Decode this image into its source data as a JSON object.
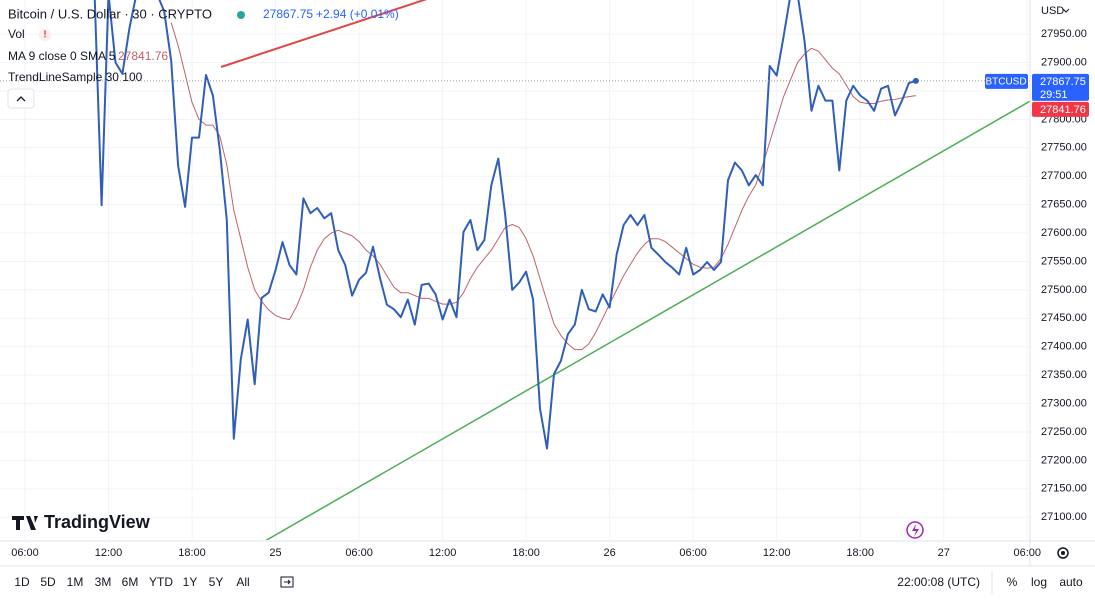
{
  "chart_data": {
    "type": "line",
    "categories": [
      "06:00",
      null,
      null,
      null,
      null,
      null,
      null,
      null,
      null,
      null,
      null,
      null,
      "12:00",
      null,
      null,
      null,
      null,
      null,
      null,
      null,
      null,
      null,
      null,
      null,
      "18:00",
      null,
      null,
      null,
      null,
      null,
      null,
      null,
      null,
      null,
      null,
      null,
      "25",
      null,
      null,
      null,
      null,
      null,
      null,
      null,
      null,
      null,
      null,
      null,
      "06:00",
      null,
      null,
      null,
      null,
      null,
      null,
      null,
      null,
      null,
      null,
      null,
      "12:00",
      null,
      null,
      null,
      null,
      null,
      null,
      null,
      null,
      null,
      null,
      null,
      "18:00",
      null,
      null,
      null,
      null,
      null,
      null,
      null,
      null,
      null,
      null,
      null,
      "26",
      null,
      null,
      null,
      null,
      null,
      null,
      null,
      null,
      null,
      null,
      null,
      "06:00",
      null,
      null,
      null,
      null,
      null,
      null,
      null,
      null,
      null,
      null,
      null,
      "12:00",
      null,
      null,
      null,
      null,
      null,
      null,
      null,
      null,
      null,
      null,
      null,
      "18:00",
      null,
      null,
      null,
      null,
      null,
      null,
      null,
      null,
      null,
      null,
      null,
      "27",
      null,
      null,
      null,
      null,
      null,
      null,
      null,
      null,
      null,
      null,
      null,
      "06:00"
    ],
    "series": [
      {
        "name": "BTCUSD",
        "color": "#2f5fb8",
        "values": [
          null,
          null,
          null,
          null,
          null,
          null,
          null,
          null,
          null,
          null,
          28020,
          27649,
          28020,
          27900,
          27880,
          27960,
          28020,
          28020,
          28020,
          28020,
          27990,
          27903,
          27719,
          27646,
          27768,
          27768,
          27878,
          27842,
          27745,
          27623,
          27238,
          27378,
          27448,
          27334,
          27486,
          27495,
          27535,
          27584,
          27544,
          27527,
          27661,
          27635,
          27644,
          27626,
          27635,
          27570,
          27544,
          27490,
          27518,
          27530,
          27576,
          27521,
          27474,
          27466,
          27452,
          27483,
          27439,
          27509,
          27511,
          27492,
          27448,
          27483,
          27452,
          27602,
          27623,
          27570,
          27588,
          27684,
          27731,
          27632,
          27500,
          27513,
          27532,
          27483,
          27291,
          27221,
          27352,
          27375,
          27422,
          27439,
          27500,
          27466,
          27462,
          27492,
          27469,
          27562,
          27614,
          27632,
          27614,
          27632,
          27574,
          27562,
          27549,
          27539,
          27527,
          27574,
          27527,
          27535,
          27549,
          27535,
          27549,
          27693,
          27724,
          27710,
          27684,
          27702,
          27684,
          27894,
          27877,
          27946,
          28020,
          28020,
          27938,
          27815,
          27859,
          27833,
          27833,
          27710,
          27833,
          27859,
          27842,
          27833,
          27815,
          27854,
          27859,
          27807,
          27833,
          27864,
          27867.75,
          null,
          null,
          null,
          null,
          null,
          null,
          null,
          null,
          null,
          null,
          null,
          null,
          null,
          null,
          null,
          null
        ]
      },
      {
        "name": "MA 9 close 0 SMA 5",
        "color": "#c0626a",
        "values": [
          null,
          null,
          null,
          null,
          null,
          null,
          null,
          null,
          null,
          null,
          null,
          null,
          null,
          null,
          null,
          null,
          null,
          null,
          null,
          null,
          null,
          27970,
          27930,
          27880,
          27830,
          27800,
          27790,
          27790,
          27770,
          27720,
          27640,
          27590,
          27540,
          27500,
          27480,
          27465,
          27455,
          27450,
          27448,
          27470,
          27500,
          27540,
          27570,
          27590,
          27600,
          27605,
          27600,
          27595,
          27585,
          27570,
          27560,
          27545,
          27525,
          27505,
          27495,
          27495,
          27490,
          27485,
          27485,
          27480,
          27475,
          27475,
          27478,
          27495,
          27520,
          27540,
          27555,
          27570,
          27590,
          27610,
          27615,
          27610,
          27590,
          27560,
          27520,
          27480,
          27440,
          27420,
          27405,
          27395,
          27395,
          27405,
          27425,
          27450,
          27475,
          27500,
          27525,
          27545,
          27565,
          27580,
          27590,
          27590,
          27585,
          27575,
          27565,
          27555,
          27545,
          27540,
          27538,
          27540,
          27555,
          27580,
          27610,
          27640,
          27665,
          27685,
          27720,
          27760,
          27800,
          27840,
          27870,
          27900,
          27915,
          27925,
          27920,
          27905,
          27890,
          27880,
          27860,
          27840,
          27830,
          27828,
          27828,
          27832,
          27834,
          27835,
          27838,
          27840,
          27841.76,
          null,
          null,
          null,
          null,
          null,
          null,
          null,
          null,
          null,
          null,
          null,
          null,
          null,
          null,
          null,
          null
        ]
      }
    ],
    "ylim": [
      27060,
      28010
    ],
    "yticks": [
      {
        "value": 27100,
        "label": "27100.00"
      },
      {
        "value": 27150,
        "label": "27150.00"
      },
      {
        "value": 27200,
        "label": "27200.00"
      },
      {
        "value": 27250,
        "label": "27250.00"
      },
      {
        "value": 27300,
        "label": "27300.00"
      },
      {
        "value": 27350,
        "label": "27350.00"
      },
      {
        "value": 27400,
        "label": "27400.00"
      },
      {
        "value": 27450,
        "label": "27450.00"
      },
      {
        "value": 27500,
        "label": "27500.00"
      },
      {
        "value": 27550,
        "label": "27550.00"
      },
      {
        "value": 27600,
        "label": "27600.00"
      },
      {
        "value": 27650,
        "label": "27650.00"
      },
      {
        "value": 27700,
        "label": "27700.00"
      },
      {
        "value": 27750,
        "label": "27750.00"
      },
      {
        "value": 27800,
        "label": "27800.00"
      },
      {
        "value": 27850,
        "label": "27850.00"
      },
      {
        "value": 27900,
        "label": "27900.00"
      },
      {
        "value": 27950,
        "label": "27950.00"
      }
    ],
    "grid": true
  },
  "legend": {
    "title": "Bitcoin / U.S. Dollar · 30 · CRYPTO",
    "last_price": "27867.75",
    "change": "+2.94 (+0.01%)",
    "vol": "Vol",
    "ma": "MA 9 close 0 SMA 5",
    "ma_value": "27841.76",
    "trend": "TrendLineSample 30 100"
  },
  "price_axis": {
    "currency": "USD",
    "symbol": "BTCUSD",
    "price": "27867.75",
    "countdown": "29:51",
    "ma_price": "27841.76"
  },
  "watermark": "TradingView",
  "toolbar": {
    "ranges": [
      "1D",
      "5D",
      "1M",
      "3M",
      "6M",
      "YTD",
      "1Y",
      "5Y",
      "All"
    ],
    "time": "22:00:08 (UTC)",
    "options": [
      "%",
      "log",
      "auto"
    ]
  }
}
